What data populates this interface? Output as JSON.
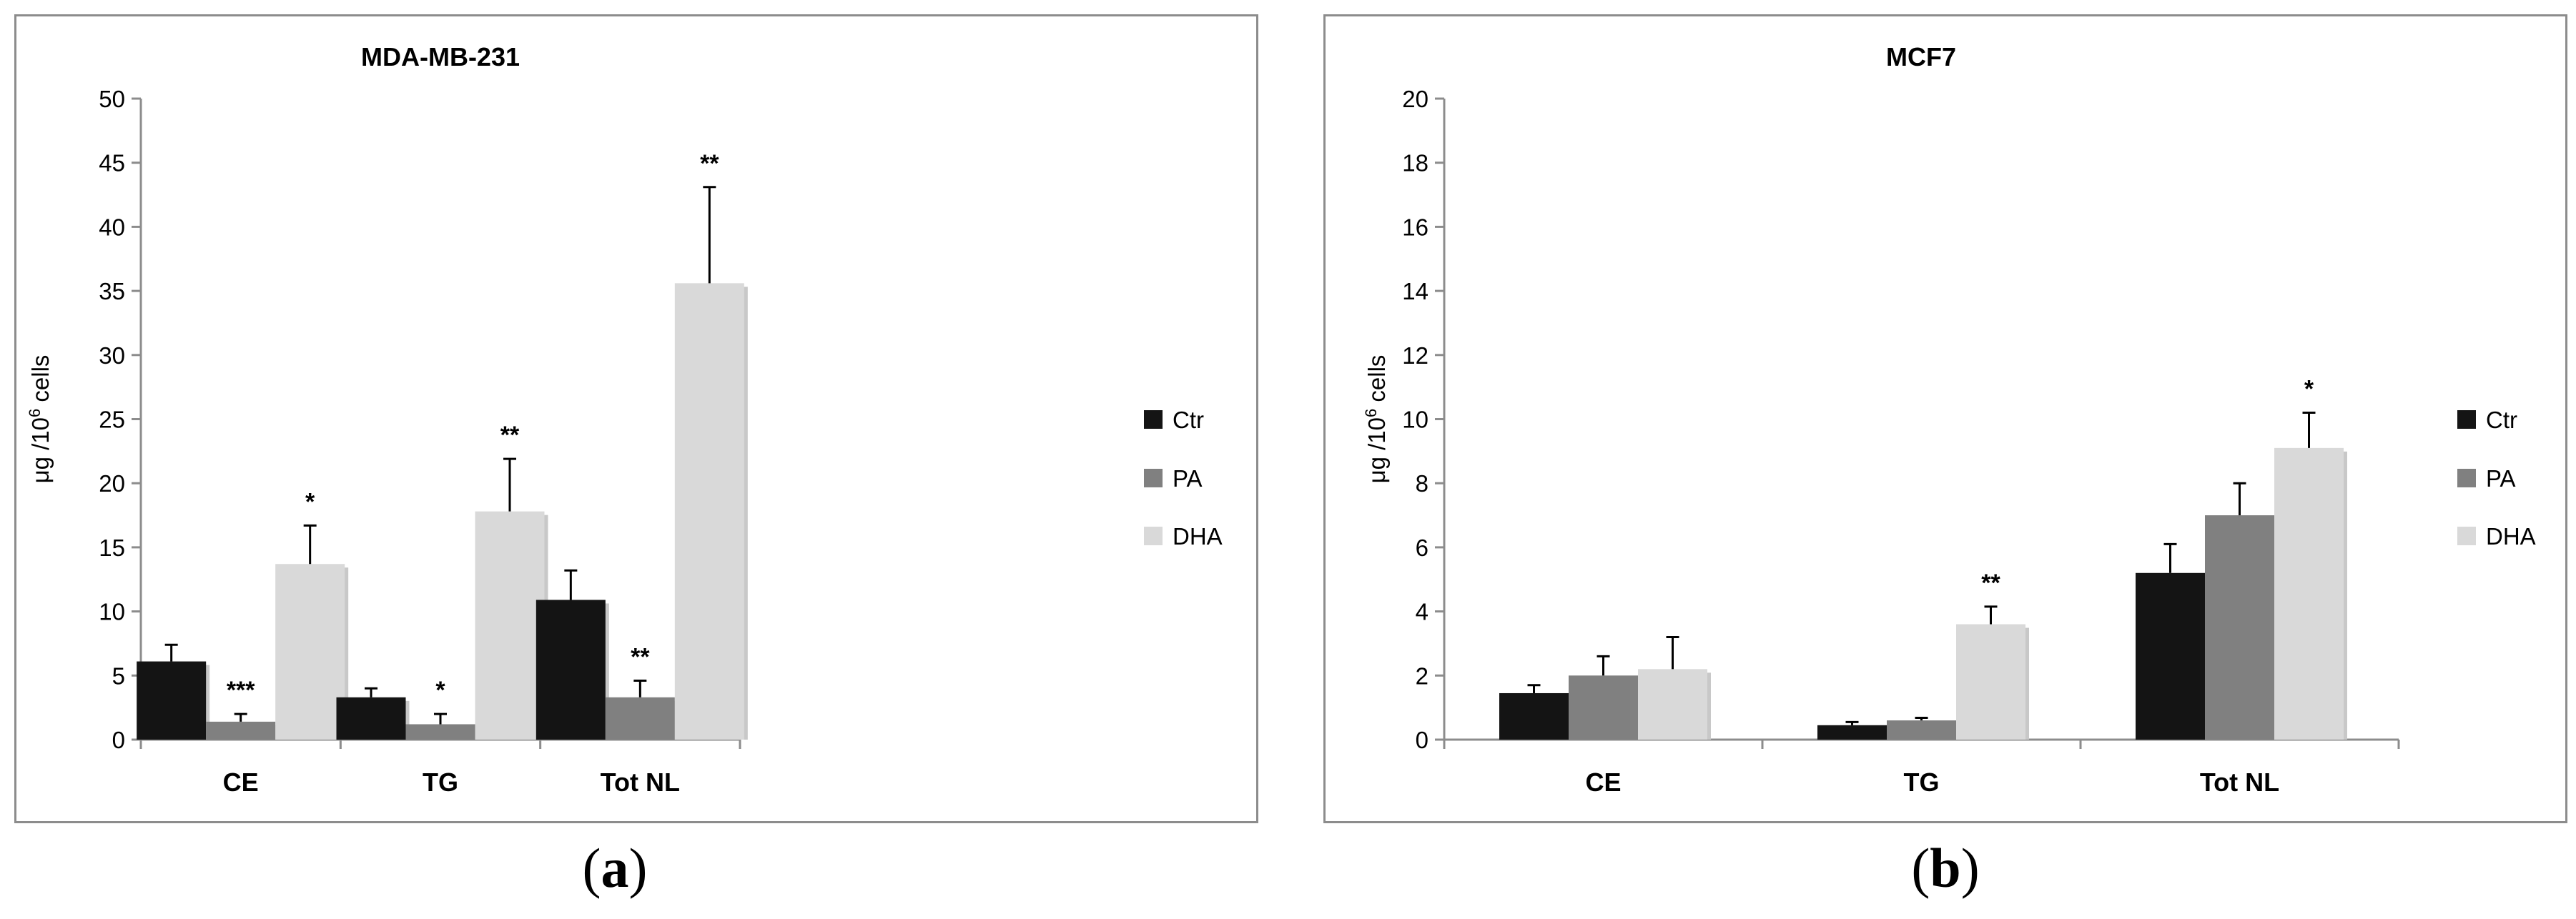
{
  "colors": {
    "Ctr": "#141414",
    "PA": "#808080",
    "DHA": "#d9d9d9",
    "axis": "#8c8c8c",
    "frame": "#8c8c8c"
  },
  "legend_position": "right",
  "captions": [
    {
      "open": "(",
      "letter": "a",
      "close": ")"
    },
    {
      "open": "(",
      "letter": "b",
      "close": ")"
    }
  ],
  "chart_data": [
    {
      "type": "bar",
      "title": "MDA-MB-231",
      "ylabel_pre": "μg /10",
      "ylabel_sup": "6",
      "ylabel_post": " cells",
      "ylim": [
        0,
        50
      ],
      "yticks": [
        0,
        5,
        10,
        15,
        20,
        25,
        30,
        35,
        40,
        45,
        50
      ],
      "grid": false,
      "categories": [
        "CE",
        "TG",
        "Tot NL"
      ],
      "series": [
        {
          "name": "Ctr",
          "values": [
            6.1,
            3.3,
            10.9
          ],
          "errors": [
            1.3,
            0.7,
            2.3
          ],
          "sig": [
            "",
            "",
            ""
          ]
        },
        {
          "name": "PA",
          "values": [
            1.4,
            1.2,
            3.3
          ],
          "errors": [
            0.6,
            0.8,
            1.3
          ],
          "sig": [
            "***",
            "*",
            "**"
          ]
        },
        {
          "name": "DHA",
          "values": [
            13.7,
            17.8,
            35.6
          ],
          "errors": [
            3.0,
            4.1,
            7.5
          ],
          "sig": [
            "*",
            "**",
            "**"
          ]
        }
      ]
    },
    {
      "type": "bar",
      "title": "MCF7",
      "ylabel_pre": "μg /10",
      "ylabel_sup": "6",
      "ylabel_post": " cells",
      "ylim": [
        0,
        20
      ],
      "yticks": [
        0,
        2,
        4,
        6,
        8,
        10,
        12,
        14,
        16,
        18,
        20
      ],
      "grid": false,
      "categories": [
        "CE",
        "TG",
        "Tot NL"
      ],
      "series": [
        {
          "name": "Ctr",
          "values": [
            1.45,
            0.45,
            5.2
          ],
          "errors": [
            0.25,
            0.1,
            0.9
          ],
          "sig": [
            "",
            "",
            ""
          ]
        },
        {
          "name": "PA",
          "values": [
            2.0,
            0.6,
            7.0
          ],
          "errors": [
            0.6,
            0.08,
            1.0
          ],
          "sig": [
            "",
            "",
            ""
          ]
        },
        {
          "name": "DHA",
          "values": [
            2.2,
            3.6,
            9.1
          ],
          "errors": [
            1.0,
            0.55,
            1.1
          ],
          "sig": [
            "",
            "**",
            "*"
          ]
        }
      ]
    }
  ]
}
